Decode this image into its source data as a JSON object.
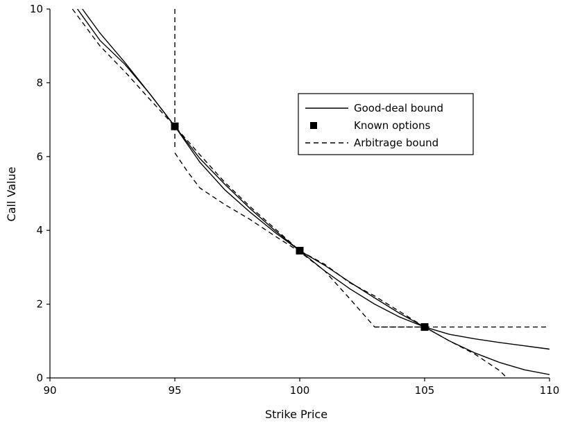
{
  "chart_data": {
    "type": "line",
    "title": "",
    "xlabel": "Strike Price",
    "ylabel": "Call Value",
    "xlim": [
      90,
      110
    ],
    "ylim": [
      0,
      10
    ],
    "xticks": [
      90,
      95,
      100,
      105,
      110
    ],
    "yticks": [
      0,
      2,
      4,
      6,
      8,
      10
    ],
    "grid": false,
    "legend_position": "center-right",
    "legend": [
      {
        "label": "Good-deal bound",
        "style": "solid"
      },
      {
        "label": "Known options",
        "style": "marker"
      },
      {
        "label": "Arbitrage bound",
        "style": "dashed"
      }
    ],
    "series": [
      {
        "name": "Good-deal bound",
        "style": "solid",
        "segments": [
          {
            "x": [
              91.1,
              92,
              93,
              94,
              95,
              96,
              97,
              98,
              99,
              100,
              101,
              102,
              103,
              104,
              105,
              106,
              107,
              108,
              109,
              110
            ],
            "y": [
              10.0,
              9.15,
              8.5,
              7.7,
              6.82,
              5.85,
              5.1,
              4.5,
              3.95,
              3.45,
              2.9,
              2.42,
              2.0,
              1.65,
              1.38,
              1.18,
              1.06,
              0.96,
              0.87,
              0.78
            ]
          },
          {
            "x": [
              91.3,
              92,
              93,
              94,
              95,
              96,
              97,
              98,
              99,
              100,
              101,
              102,
              103,
              104,
              105,
              106,
              107,
              108,
              109,
              110
            ],
            "y": [
              10.0,
              9.35,
              8.55,
              7.7,
              6.82,
              5.95,
              5.25,
              4.6,
              4.0,
              3.45,
              3.05,
              2.6,
              2.17,
              1.75,
              1.38,
              1.0,
              0.68,
              0.42,
              0.22,
              0.09
            ]
          }
        ]
      },
      {
        "name": "Arbitrage bound",
        "style": "dashed",
        "segments": [
          {
            "x": [
              95,
              95
            ],
            "y": [
              10,
              6.2
            ]
          },
          {
            "x": [
              95,
              95.5,
              96,
              97,
              98,
              99,
              100,
              101,
              102,
              103,
              103.5,
              104,
              105,
              106,
              107,
              108,
              108.3
            ],
            "y": [
              6.1,
              5.6,
              5.15,
              4.7,
              4.3,
              3.85,
              3.42,
              2.9,
              2.15,
              1.38,
              1.38,
              1.38,
              1.38,
              1.0,
              0.65,
              0.2,
              0.0
            ]
          },
          {
            "x": [
              103,
              104,
              105,
              106,
              107,
              108,
              109,
              110
            ],
            "y": [
              1.38,
              1.38,
              1.38,
              1.38,
              1.38,
              1.38,
              1.38,
              1.38
            ]
          },
          {
            "x": [
              90.9,
              92,
              93,
              94,
              95,
              96,
              97,
              98,
              99,
              100,
              101,
              102,
              103,
              104,
              105
            ],
            "y": [
              10.0,
              9.0,
              8.3,
              7.55,
              6.82,
              6.05,
              5.3,
              4.65,
              4.05,
              3.45,
              3.08,
              2.58,
              2.22,
              1.8,
              1.38
            ]
          }
        ]
      }
    ],
    "known_options": {
      "name": "Known options",
      "x": [
        95,
        100,
        105
      ],
      "y": [
        6.82,
        3.45,
        1.38
      ]
    }
  }
}
